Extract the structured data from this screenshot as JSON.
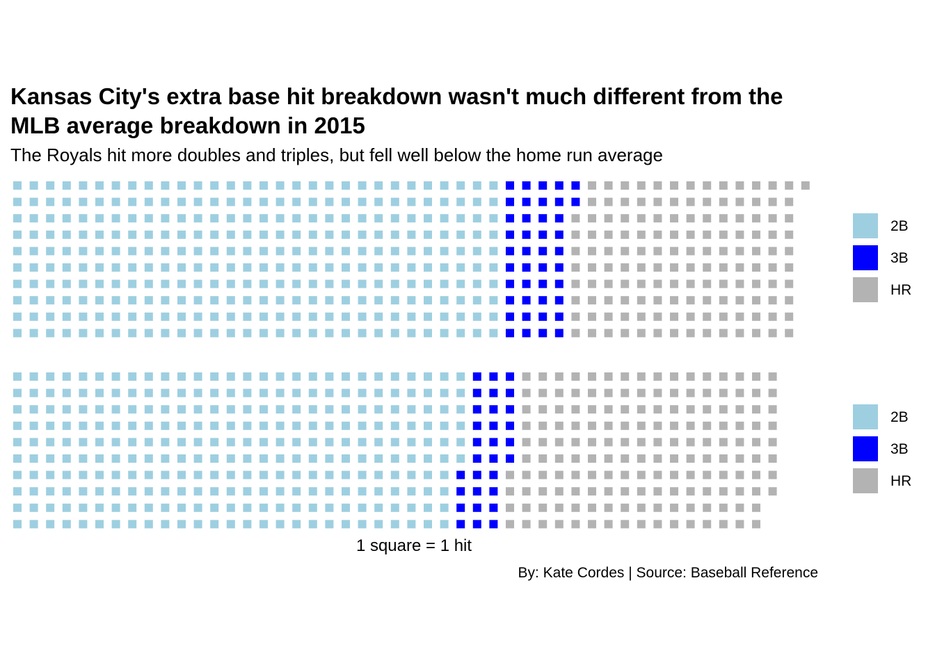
{
  "title": "Kansas City's extra base hit breakdown wasn't much different from the MLB average breakdown in 2015",
  "subtitle": "The Royals hit more doubles and triples, but fell well below the home run average",
  "caption": "1 square = 1 hit",
  "credit": "By: Kate Cordes | Source: Baseball Reference",
  "chart_data": [
    {
      "type": "waffle",
      "rows": 10,
      "unit": "1 square = 1 hit",
      "categories": [
        "2B",
        "3B",
        "HR"
      ],
      "values": [
        300,
        42,
        139
      ],
      "colors": [
        "#9ecfe0",
        "#0000ff",
        "#b3b3b3"
      ],
      "legend": "right"
    },
    {
      "type": "waffle",
      "rows": 10,
      "unit": "1 square = 1 hit",
      "categories": [
        "2B",
        "3B",
        "HR"
      ],
      "values": [
        276,
        30,
        162
      ],
      "colors": [
        "#9ecfe0",
        "#0000ff",
        "#b3b3b3"
      ],
      "legend": "right"
    }
  ]
}
